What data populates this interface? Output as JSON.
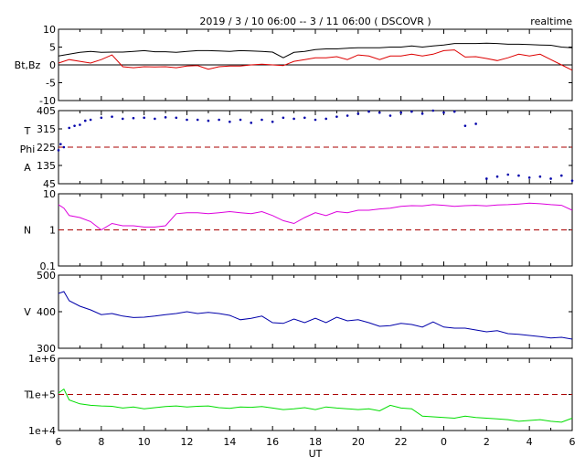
{
  "header": {
    "title": "2019 / 3 / 10   06:00 --  3 / 11   06:00 ( DSCOVR )",
    "mode": "realtime"
  },
  "colors": {
    "bt": "#000000",
    "bz": "#dd0000",
    "phi": "#0000aa",
    "density": "#dd00dd",
    "speed": "#0000aa",
    "temperature": "#00dd00",
    "reference": "#aa0000"
  },
  "chart_data": {
    "type": "line",
    "xlabel": "UT",
    "x_ticks": [
      "6",
      "8",
      "10",
      "12",
      "14",
      "16",
      "18",
      "20",
      "22",
      "0",
      "2",
      "4",
      "6"
    ],
    "x_range_hours": [
      0,
      24
    ],
    "panels": [
      {
        "id": "mag",
        "ylabel": "Bt,Bz",
        "ylim": [
          -10,
          10
        ],
        "yticks": [
          "10",
          "5",
          "0",
          "-5",
          "-10"
        ],
        "zero_line": 0,
        "series": [
          {
            "key": "bt",
            "x": [
              0,
              0.5,
              1,
              1.5,
              2,
              2.5,
              3,
              3.5,
              4,
              4.5,
              5,
              5.5,
              6,
              6.5,
              7,
              7.5,
              8,
              8.5,
              9,
              9.5,
              10,
              10.5,
              11,
              11.5,
              12,
              12.5,
              13,
              13.5,
              14,
              14.5,
              15,
              15.5,
              16,
              16.5,
              17,
              17.5,
              18,
              18.5,
              19,
              19.5,
              20,
              20.5,
              21,
              21.5,
              22,
              22.5,
              23,
              23.5,
              24
            ],
            "y": [
              2.5,
              3,
              3.5,
              3.8,
              3.5,
              3.6,
              3.6,
              3.8,
              4,
              3.7,
              3.7,
              3.5,
              3.8,
              4,
              4,
              3.9,
              3.8,
              4,
              3.9,
              3.8,
              3.6,
              2,
              3.5,
              3.8,
              4.3,
              4.5,
              4.5,
              4.7,
              4.8,
              4.8,
              4.8,
              5,
              5,
              5.3,
              5,
              5.3,
              5.6,
              6,
              6,
              6,
              6.1,
              6,
              5.8,
              5.8,
              5.7,
              5.6,
              5.5,
              5,
              4.8
            ]
          },
          {
            "key": "bz",
            "x": [
              0,
              0.5,
              1,
              1.5,
              2,
              2.5,
              3,
              3.5,
              4,
              4.5,
              5,
              5.5,
              6,
              6.5,
              7,
              7.5,
              8,
              8.5,
              9,
              9.5,
              10,
              10.5,
              11,
              11.5,
              12,
              12.5,
              13,
              13.5,
              14,
              14.5,
              15,
              15.5,
              16,
              16.5,
              17,
              17.5,
              18,
              18.5,
              19,
              19.5,
              20,
              20.5,
              21,
              21.5,
              22,
              22.5,
              23,
              23.5,
              24
            ],
            "y": [
              0.5,
              1.5,
              1,
              0.5,
              1.5,
              2.8,
              -0.5,
              -0.8,
              -0.5,
              -0.6,
              -0.5,
              -0.8,
              -0.3,
              -0.2,
              -1.2,
              -0.5,
              -0.3,
              -0.3,
              0,
              0.2,
              0,
              -0.2,
              1,
              1.5,
              2,
              2,
              2.3,
              1.5,
              2.8,
              2.5,
              1.5,
              2.5,
              2.5,
              3,
              2.5,
              3,
              4,
              4.2,
              2.2,
              2.3,
              1.8,
              1.2,
              2,
              3,
              2.5,
              3,
              1.5,
              0,
              -1.5
            ]
          }
        ]
      },
      {
        "id": "phi",
        "ylabel_lines": [
          "T",
          "Phi",
          "A"
        ],
        "ylim": [
          45,
          405
        ],
        "yticks": [
          "405",
          "315",
          "225",
          "135",
          "45"
        ],
        "ref_line": 225,
        "series": [
          {
            "key": "phi",
            "x": [
              0,
              0.1,
              0.25,
              0.5,
              0.75,
              1,
              1.25,
              1.5,
              2,
              2.5,
              3,
              3.5,
              4,
              4.5,
              5,
              5.5,
              6,
              6.5,
              7,
              7.5,
              8,
              8.5,
              9,
              9.5,
              10,
              10.5,
              11,
              11.5,
              12,
              12.5,
              13,
              13.5,
              14,
              14.5,
              15,
              15.5,
              16,
              16.5,
              17,
              17.5,
              18,
              18.5,
              19,
              19.5,
              20,
              20.5,
              21,
              21.5,
              22,
              22.5,
              23,
              23.5,
              24
            ],
            "y": [
              210,
              240,
              225,
              320,
              330,
              335,
              355,
              360,
              370,
              375,
              365,
              368,
              370,
              365,
              372,
              370,
              360,
              360,
              355,
              360,
              350,
              360,
              345,
              360,
              350,
              370,
              365,
              370,
              360,
              365,
              375,
              380,
              390,
              400,
              395,
              380,
              395,
              400,
              390,
              405,
              395,
              400,
              330,
              340,
              70,
              80,
              90,
              85,
              75,
              80,
              70,
              85,
              60
            ]
          }
        ]
      },
      {
        "id": "density",
        "ylabel": "N",
        "ylim": [
          0.1,
          10
        ],
        "log": true,
        "yticks": [
          "10",
          "1",
          "0.1"
        ],
        "ref_line": 1,
        "series": [
          {
            "key": "density",
            "x": [
              0,
              0.25,
              0.5,
              1,
              1.5,
              2,
              2.5,
              3,
              3.5,
              4,
              4.5,
              5,
              5.5,
              6,
              6.5,
              7,
              7.5,
              8,
              8.5,
              9,
              9.5,
              10,
              10.5,
              11,
              11.5,
              12,
              12.5,
              13,
              13.5,
              14,
              14.5,
              15,
              15.5,
              16,
              16.5,
              17,
              17.5,
              18,
              18.5,
              19,
              19.5,
              20,
              20.5,
              21,
              21.5,
              22,
              22.5,
              23,
              23.5,
              24
            ],
            "y": [
              5,
              4,
              2.5,
              2.2,
              1.7,
              1,
              1.5,
              1.3,
              1.3,
              1.2,
              1.2,
              1.3,
              2.8,
              3,
              3,
              2.8,
              3,
              3.2,
              3,
              2.8,
              3.2,
              2.5,
              1.8,
              1.5,
              2.2,
              3,
              2.5,
              3.2,
              3,
              3.5,
              3.5,
              3.8,
              4,
              4.5,
              4.7,
              4.6,
              5,
              4.8,
              4.5,
              4.7,
              4.8,
              4.6,
              4.9,
              5,
              5.2,
              5.5,
              5.3,
              5,
              4.8,
              3.5
            ]
          }
        ]
      },
      {
        "id": "speed",
        "ylabel": "V",
        "ylim": [
          300,
          500
        ],
        "yticks": [
          "500",
          "400",
          "300"
        ],
        "series": [
          {
            "key": "speed",
            "x": [
              0,
              0.25,
              0.5,
              1,
              1.5,
              2,
              2.5,
              3,
              3.5,
              4,
              4.5,
              5,
              5.5,
              6,
              6.5,
              7,
              7.5,
              8,
              8.5,
              9,
              9.5,
              10,
              10.5,
              11,
              11.5,
              12,
              12.5,
              13,
              13.5,
              14,
              14.5,
              15,
              15.5,
              16,
              16.5,
              17,
              17.5,
              18,
              18.5,
              19,
              19.5,
              20,
              20.5,
              21,
              21.5,
              22,
              22.5,
              23,
              23.5,
              24
            ],
            "y": [
              450,
              455,
              430,
              415,
              405,
              392,
              395,
              388,
              384,
              385,
              388,
              392,
              395,
              400,
              395,
              398,
              395,
              390,
              378,
              382,
              388,
              370,
              368,
              380,
              370,
              382,
              370,
              385,
              375,
              378,
              370,
              360,
              362,
              368,
              365,
              358,
              372,
              358,
              355,
              355,
              350,
              345,
              348,
              340,
              338,
              335,
              332,
              328,
              330,
              325
            ]
          }
        ]
      },
      {
        "id": "temperature",
        "ylabel": "T",
        "ylim": [
          10000,
          1000000
        ],
        "log": true,
        "yticks": [
          "1e+6",
          "1e+5",
          "1e+4"
        ],
        "ref_line": 100000,
        "series": [
          {
            "key": "temperature",
            "x": [
              0,
              0.25,
              0.5,
              1,
              1.5,
              2,
              2.5,
              3,
              3.5,
              4,
              4.5,
              5,
              5.5,
              6,
              6.5,
              7,
              7.5,
              8,
              8.5,
              9,
              9.5,
              10,
              10.5,
              11,
              11.5,
              12,
              12.5,
              13,
              13.5,
              14,
              14.5,
              15,
              15.5,
              16,
              16.5,
              17,
              17.5,
              18,
              18.5,
              19,
              19.5,
              20,
              20.5,
              21,
              21.5,
              22,
              22.5,
              23,
              23.5,
              24
            ],
            "y": [
              110000,
              140000,
              70000,
              55000,
              50000,
              48000,
              47000,
              42000,
              45000,
              40000,
              43000,
              46000,
              48000,
              45000,
              47000,
              48000,
              43000,
              41000,
              45000,
              44000,
              46000,
              42000,
              38000,
              40000,
              43000,
              38000,
              45000,
              42000,
              40000,
              38000,
              40000,
              35000,
              50000,
              42000,
              40000,
              25000,
              24000,
              23000,
              22000,
              25000,
              23000,
              22000,
              21000,
              20000,
              18000,
              19000,
              20000,
              18000,
              17000,
              22000
            ]
          }
        ]
      }
    ]
  }
}
